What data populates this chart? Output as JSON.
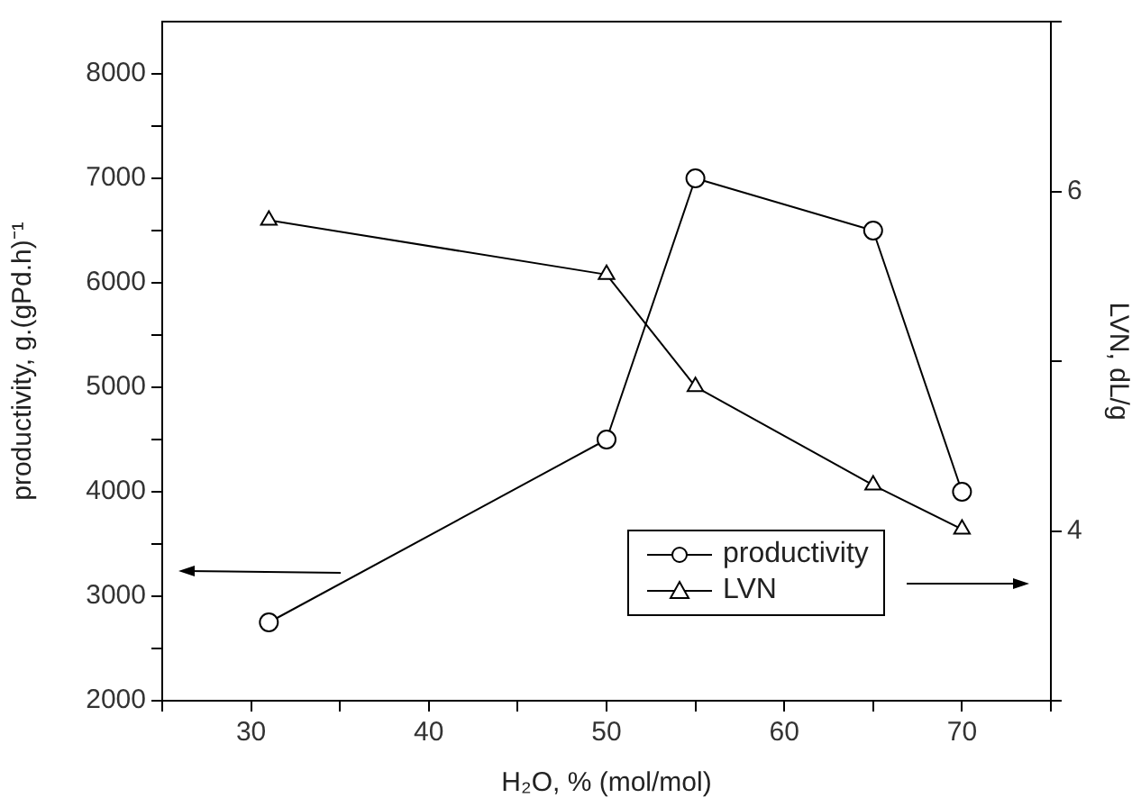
{
  "chart_data": {
    "type": "line",
    "xlabel": "H₂O, % (mol/mol)",
    "ylabel": "productivity, g.(gPd.h)⁻¹",
    "y2label": "LVN, dL/g",
    "x": [
      31,
      50,
      55,
      65,
      70
    ],
    "series": [
      {
        "name": "productivity",
        "color": "#000000",
        "values": [
          2750,
          4500,
          7000,
          6500,
          4000
        ],
        "marker": "circle"
      },
      {
        "name": "LVN",
        "color": "#000000",
        "values": [
          5.83,
          5.51,
          4.85,
          4.27,
          4.01
        ],
        "marker": "triangle",
        "axis": "y2"
      }
    ],
    "xlim": [
      25,
      75
    ],
    "xticks": [
      {
        "value": 25,
        "label": null
      },
      30,
      {
        "value": 35,
        "label": null
      },
      40,
      {
        "value": 45,
        "label": null
      },
      50,
      {
        "value": 55,
        "label": null
      },
      60,
      {
        "value": 65,
        "label": null
      },
      70,
      {
        "value": 75,
        "label": null
      }
    ],
    "ylim": [
      2000,
      8500
    ],
    "yticks": [
      2000,
      {
        "value": 2500,
        "label": null
      },
      3000,
      {
        "value": 3500,
        "label": null
      },
      4000,
      {
        "value": 4500,
        "label": null
      },
      5000,
      {
        "value": 5500,
        "label": null
      },
      6000,
      {
        "value": 6500,
        "label": null
      },
      7000,
      {
        "value": 7500,
        "label": null
      },
      8000
    ],
    "y2lim": [
      3,
      7
    ],
    "y2ticks": [
      {
        "value": 3,
        "label": null
      },
      4,
      {
        "value": 5,
        "label": null
      },
      6,
      {
        "value": 7,
        "label": null
      }
    ],
    "grid": false,
    "legend": "bottom right",
    "line_style": "solid"
  }
}
